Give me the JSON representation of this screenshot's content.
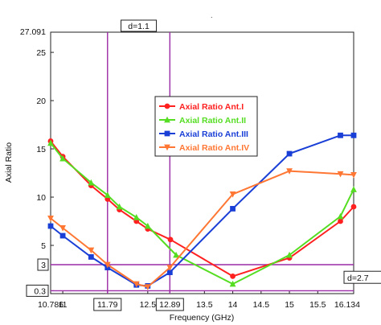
{
  "chart_data": {
    "type": "line",
    "xlabel": "Frequency (GHz)",
    "ylabel": "Axial Ratio",
    "xlim": [
      10.786,
      16.134
    ],
    "ylim": [
      0,
      27.091
    ],
    "x_ticks": [
      "10.786",
      "11",
      "11.79",
      "12.5",
      "12.89",
      "13.5",
      "14",
      "14.5",
      "15",
      "15.5",
      "16.134"
    ],
    "y_ticks": [
      "27.091",
      "25",
      "20",
      "15",
      "10",
      "5",
      "3",
      "0.3"
    ],
    "legend_position": "center-right",
    "grid": false,
    "series": [
      {
        "name": "Axial Ratio Ant.I",
        "color": "#ff2020",
        "marker": "circle",
        "x": [
          10.786,
          11.0,
          11.5,
          11.79,
          12.0,
          12.3,
          12.5,
          12.9,
          14.0,
          15.0,
          15.9,
          16.134
        ],
        "y": [
          15.8,
          14.2,
          11.2,
          9.8,
          8.7,
          7.5,
          6.7,
          5.6,
          1.8,
          3.7,
          7.5,
          9.0
        ]
      },
      {
        "name": "Axial Ratio Ant.II",
        "color": "#55dd22",
        "marker": "triangle",
        "x": [
          10.786,
          11.0,
          11.5,
          11.79,
          12.0,
          12.3,
          12.5,
          13.0,
          14.0,
          15.0,
          15.9,
          16.134
        ],
        "y": [
          15.6,
          14.0,
          11.5,
          10.2,
          9.0,
          7.9,
          7.0,
          4.0,
          1.0,
          4.0,
          8.0,
          10.8
        ]
      },
      {
        "name": "Axial Ratio Ant.III",
        "color": "#1a3fd6",
        "marker": "square",
        "x": [
          10.786,
          11.0,
          11.5,
          11.79,
          12.3,
          12.5,
          12.89,
          14.0,
          15.0,
          15.9,
          16.134
        ],
        "y": [
          7.0,
          6.0,
          3.8,
          2.7,
          0.9,
          0.8,
          2.2,
          8.8,
          14.5,
          16.4,
          16.4
        ]
      },
      {
        "name": "Axial Ratio Ant.IV",
        "color": "#ff7733",
        "marker": "triangle-down",
        "x": [
          10.786,
          11.0,
          11.5,
          11.79,
          12.3,
          12.5,
          12.89,
          14.0,
          15.0,
          15.9,
          16.134
        ],
        "y": [
          7.8,
          6.8,
          4.5,
          3.0,
          1.0,
          0.7,
          2.7,
          10.3,
          12.7,
          12.4,
          12.3
        ]
      }
    ],
    "markers": {
      "vertical": [
        {
          "x": 11.79,
          "label": "11.79"
        },
        {
          "x": 12.89,
          "label": "12.89"
        }
      ],
      "vertical_delta_label": "d=1.1",
      "horizontal": [
        {
          "y": 3,
          "label": "3"
        },
        {
          "y": 0.3,
          "label": "0.3"
        }
      ],
      "horizontal_delta_label": "d=2.7"
    }
  }
}
